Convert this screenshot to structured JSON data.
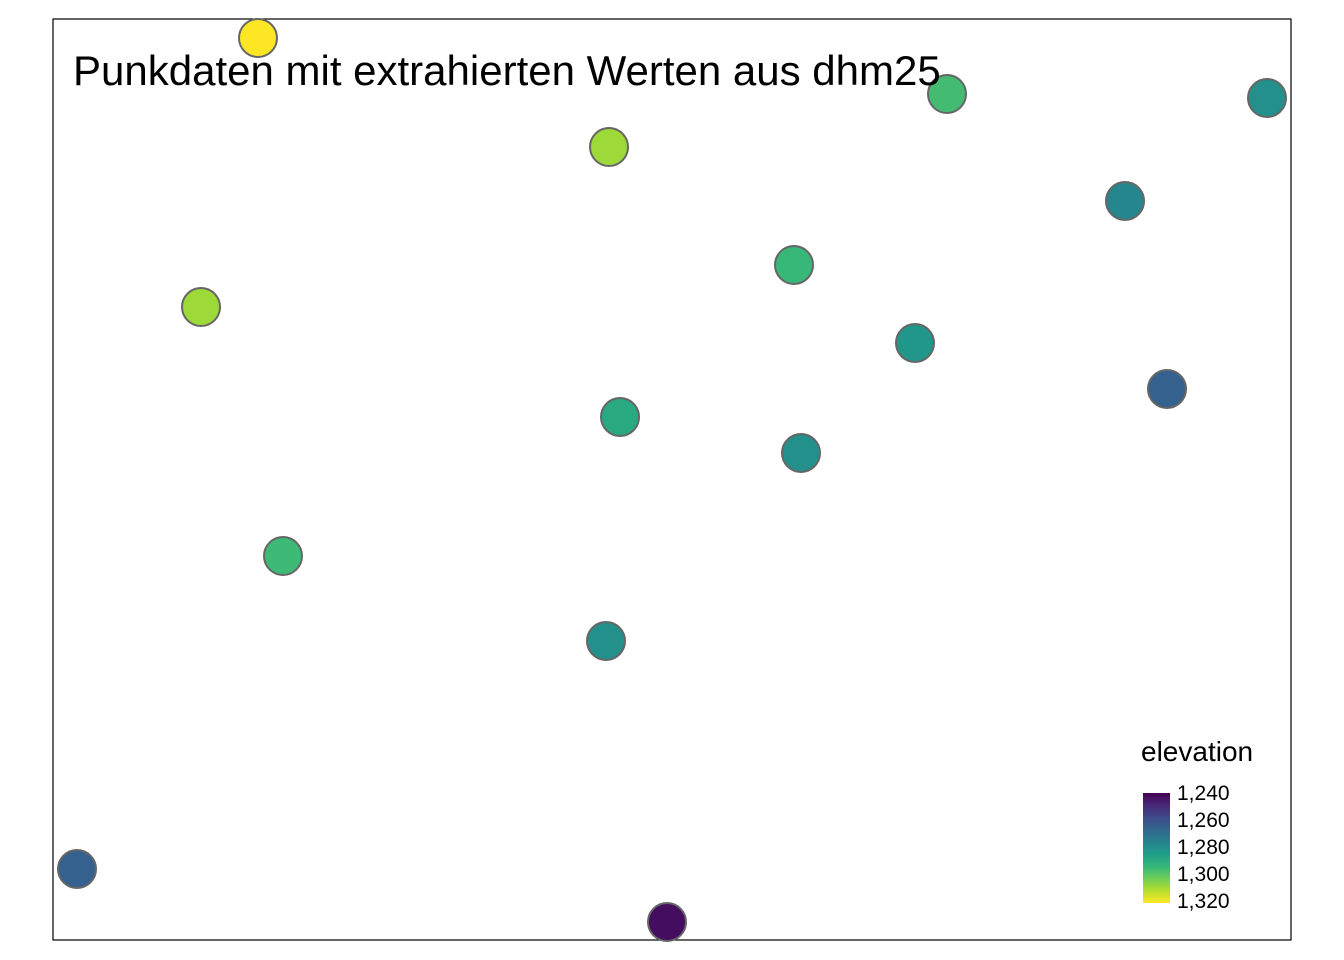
{
  "chart_data": {
    "type": "scatter",
    "title": "Punkdaten mit extrahierten Werten aus dhm25",
    "legend": {
      "title": "elevation",
      "placement": "bottom-right",
      "ticks": [
        {
          "value": 1240,
          "label": "1,240"
        },
        {
          "value": 1260,
          "label": "1,260"
        },
        {
          "value": 1280,
          "label": "1,280"
        },
        {
          "value": 1300,
          "label": "1,300"
        },
        {
          "value": 1320,
          "label": "1,320"
        }
      ],
      "range": [
        1238,
        1326
      ],
      "palette": [
        "#440154",
        "#482878",
        "#3e4a89",
        "#31688e",
        "#26828e",
        "#1f9e89",
        "#35b779",
        "#6ece58",
        "#b5de2b",
        "#fde725"
      ]
    },
    "grid": false,
    "points": [
      {
        "elevation": 1326
      },
      {
        "elevation": 1299
      },
      {
        "elevation": 1282
      },
      {
        "elevation": 1313
      },
      {
        "elevation": 1279
      },
      {
        "elevation": 1297
      },
      {
        "elevation": 1313
      },
      {
        "elevation": 1284
      },
      {
        "elevation": 1265
      },
      {
        "elevation": 1291
      },
      {
        "elevation": 1282
      },
      {
        "elevation": 1298
      },
      {
        "elevation": 1282
      },
      {
        "elevation": 1265
      },
      {
        "elevation": 1241
      }
    ]
  }
}
